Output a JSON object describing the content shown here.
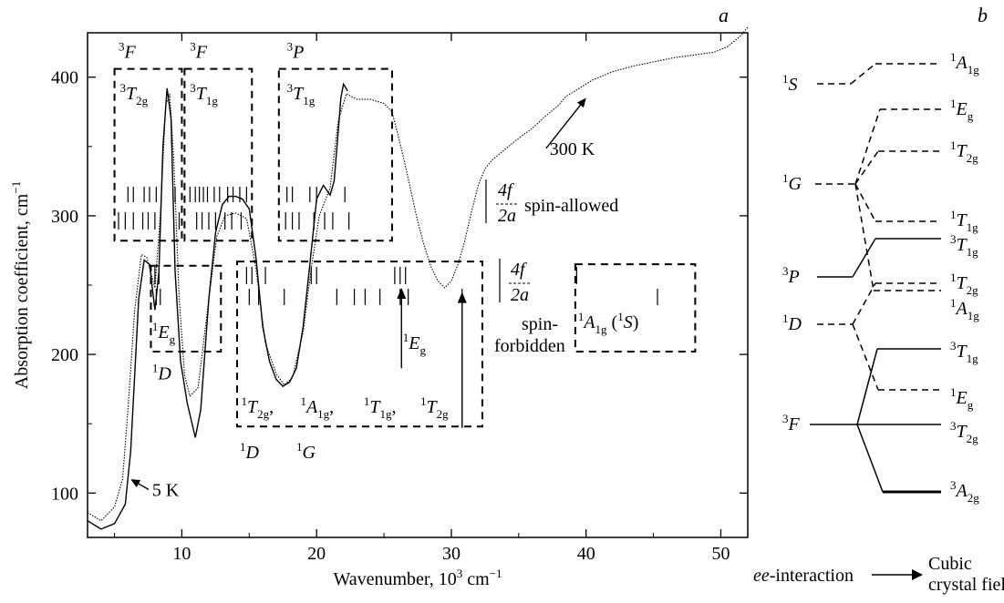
{
  "chart_data": {
    "type": "line",
    "panel_label": "a",
    "xlabel_text": "Wavenumber, 10",
    "xlabel_exp": "3",
    "xlabel_unit": " cm",
    "xlabel_unit_exp": "−1",
    "ylabel_text": "Absorption coefficient, cm",
    "ylabel_exp": "−1",
    "xlim": [
      3,
      52
    ],
    "ylim": [
      68,
      432
    ],
    "xticks": [
      10,
      20,
      30,
      40,
      50
    ],
    "yticks": [
      100,
      200,
      300,
      400
    ],
    "series": [
      {
        "name": "5 K",
        "style": "solid",
        "points": [
          [
            3.0,
            80
          ],
          [
            4.0,
            74
          ],
          [
            5.0,
            78
          ],
          [
            5.8,
            92
          ],
          [
            6.2,
            130
          ],
          [
            6.8,
            240
          ],
          [
            7.2,
            268
          ],
          [
            7.6,
            265
          ],
          [
            8.0,
            232
          ],
          [
            8.3,
            260
          ],
          [
            8.6,
            350
          ],
          [
            8.9,
            392
          ],
          [
            9.2,
            370
          ],
          [
            9.5,
            260
          ],
          [
            9.9,
            195
          ],
          [
            10.4,
            165
          ],
          [
            11.0,
            140
          ],
          [
            11.4,
            160
          ],
          [
            12.0,
            240
          ],
          [
            12.5,
            288
          ],
          [
            13.0,
            308
          ],
          [
            13.5,
            314
          ],
          [
            14.0,
            314
          ],
          [
            14.5,
            312
          ],
          [
            15.0,
            305
          ],
          [
            15.5,
            270
          ],
          [
            16.0,
            220
          ],
          [
            16.5,
            195
          ],
          [
            17.0,
            182
          ],
          [
            17.5,
            177
          ],
          [
            18.0,
            180
          ],
          [
            18.5,
            190
          ],
          [
            19.0,
            220
          ],
          [
            19.5,
            265
          ],
          [
            20.0,
            312
          ],
          [
            20.5,
            322
          ],
          [
            21.0,
            315
          ],
          [
            21.3,
            325
          ],
          [
            21.6,
            360
          ],
          [
            21.8,
            385
          ],
          [
            22.0,
            395
          ],
          [
            22.3,
            390
          ]
        ]
      },
      {
        "name": "300 K",
        "style": "dotted",
        "points": [
          [
            3.0,
            86
          ],
          [
            4.0,
            80
          ],
          [
            5.0,
            90
          ],
          [
            5.6,
            110
          ],
          [
            6.0,
            160
          ],
          [
            6.5,
            232
          ],
          [
            7.0,
            272
          ],
          [
            7.4,
            270
          ],
          [
            8.0,
            248
          ],
          [
            8.4,
            300
          ],
          [
            8.8,
            380
          ],
          [
            9.1,
            388
          ],
          [
            9.4,
            340
          ],
          [
            9.8,
            240
          ],
          [
            10.2,
            185
          ],
          [
            10.6,
            170
          ],
          [
            11.2,
            176
          ],
          [
            12.0,
            240
          ],
          [
            12.6,
            285
          ],
          [
            13.2,
            300
          ],
          [
            14.0,
            302
          ],
          [
            14.8,
            298
          ],
          [
            15.5,
            262
          ],
          [
            16.2,
            208
          ],
          [
            17.0,
            186
          ],
          [
            17.6,
            178
          ],
          [
            18.2,
            183
          ],
          [
            19.0,
            216
          ],
          [
            19.6,
            262
          ],
          [
            20.2,
            300
          ],
          [
            21.0,
            320
          ],
          [
            21.6,
            368
          ],
          [
            22.2,
            388
          ],
          [
            23.0,
            384
          ],
          [
            24.0,
            384
          ],
          [
            25.0,
            381
          ],
          [
            25.6,
            375
          ],
          [
            26.0,
            360
          ],
          [
            26.5,
            340
          ],
          [
            27.0,
            318
          ],
          [
            27.5,
            296
          ],
          [
            28.0,
            278
          ],
          [
            28.5,
            263
          ],
          [
            29.0,
            253
          ],
          [
            29.5,
            248
          ],
          [
            30.0,
            253
          ],
          [
            30.5,
            265
          ],
          [
            31.0,
            282
          ],
          [
            31.5,
            303
          ],
          [
            32.0,
            322
          ],
          [
            32.5,
            334
          ],
          [
            33.0,
            340
          ],
          [
            34.0,
            348
          ],
          [
            35.0,
            356
          ],
          [
            36.0,
            363
          ],
          [
            37.0,
            372
          ],
          [
            38.0,
            380
          ],
          [
            38.5,
            386
          ],
          [
            39.5,
            392
          ],
          [
            40.5,
            398
          ],
          [
            42.0,
            404
          ],
          [
            43.5,
            408
          ],
          [
            45.0,
            411
          ],
          [
            46.5,
            414
          ],
          [
            48.0,
            416
          ],
          [
            49.5,
            418
          ],
          [
            50.5,
            422
          ],
          [
            51.5,
            430
          ],
          [
            52.0,
            436
          ]
        ]
      }
    ],
    "temp_labels": [
      {
        "text": "5 K",
        "pos": [
          7.8,
          98
        ],
        "arrow_to": [
          6.2,
          110
        ]
      },
      {
        "text": "300 K",
        "pos": [
          37.3,
          344
        ],
        "arrow_to": [
          40.0,
          385
        ]
      }
    ],
    "boxes": [
      {
        "x": [
          5.0,
          10.0
        ],
        "y": [
          282,
          406
        ],
        "sup": "3",
        "main": "F",
        "sub": "",
        "label_pos": [
          5.3,
          414
        ]
      },
      {
        "x": [
          10.2,
          15.2
        ],
        "y": [
          282,
          406
        ],
        "sup": "3",
        "main": "F",
        "sub": "",
        "label_pos": [
          10.6,
          414
        ]
      },
      {
        "x": [
          17.2,
          25.6
        ],
        "y": [
          282,
          406
        ],
        "sup": "3",
        "main": "P",
        "sub": "",
        "label_pos": [
          17.8,
          414
        ]
      },
      {
        "x": [
          7.7,
          12.9
        ],
        "y": [
          202,
          264
        ],
        "sup": "",
        "main": "",
        "sub": "",
        "label_pos": [
          0,
          0
        ]
      },
      {
        "x": [
          14.1,
          32.3
        ],
        "y": [
          148,
          267
        ],
        "sup": "",
        "main": "",
        "sub": "",
        "label_pos": [
          0,
          0
        ]
      },
      {
        "x": [
          39.2,
          48.1
        ],
        "y": [
          202,
          265
        ],
        "sup": "",
        "main": "",
        "sub": "",
        "label_pos": [
          0,
          0
        ]
      }
    ],
    "term_labels": [
      {
        "sup": "3",
        "main": "T",
        "sub": "2g",
        "pos": [
          5.4,
          384
        ]
      },
      {
        "sup": "3",
        "main": "T",
        "sub": "1g",
        "pos": [
          10.6,
          384
        ]
      },
      {
        "sup": "3",
        "main": "T",
        "sub": "1g",
        "pos": [
          17.8,
          384
        ]
      },
      {
        "sup": "1",
        "main": "E",
        "sub": "g",
        "pos": [
          7.8,
          212
        ]
      },
      {
        "sup": "1",
        "main": "D",
        "sub": "",
        "pos": [
          7.8,
          182
        ]
      },
      {
        "sup": "1",
        "main": "E",
        "sub": "g",
        "pos": [
          26.4,
          204
        ]
      },
      {
        "sup": "1",
        "main": "D",
        "sub": "",
        "pos": [
          14.3,
          125
        ]
      },
      {
        "sup": "1",
        "main": "G",
        "sub": "",
        "pos": [
          18.5,
          125
        ]
      }
    ],
    "combo_label": [
      {
        "sup": "1",
        "main": "T",
        "sub": "2g",
        "tail": ",",
        "pos": [
          14.4,
          158
        ]
      },
      {
        "sup": "1",
        "main": "A",
        "sub": "1g",
        "tail": ",",
        "pos": [
          18.8,
          158
        ]
      },
      {
        "sup": "1",
        "main": "T",
        "sub": "1g",
        "tail": ",",
        "pos": [
          23.5,
          158
        ]
      },
      {
        "sup": "1",
        "main": "T",
        "sub": "2g",
        "tail": "",
        "pos": [
          27.7,
          158
        ]
      }
    ],
    "a1s_label": {
      "sup": "1",
      "main": "A",
      "sub": "1g",
      "paren": "(",
      "sup2": "1",
      "main2": "S",
      "paren2": ")",
      "pos": [
        39.4,
        219
      ]
    },
    "up_arrows": [
      {
        "x": 26.3,
        "from": 190,
        "to": 248
      },
      {
        "x": 30.8,
        "from": 147,
        "to": 245
      }
    ],
    "sticks_upper_4f": [
      6.0,
      6.4,
      7.2,
      7.6,
      8.1,
      9.5,
      10.6,
      11.0,
      11.3,
      11.6,
      11.9,
      12.4,
      12.8,
      13.4,
      13.8,
      14.3,
      14.8,
      17.8,
      18.2,
      19.5,
      20.0,
      22.1
    ],
    "sticks_upper_2a": [
      5.3,
      5.8,
      6.4,
      7.1,
      7.5,
      8.0,
      9.8,
      11.1,
      11.5,
      12.0,
      12.5,
      13.2,
      13.7,
      14.4,
      17.7,
      18.2,
      18.7,
      19.8,
      20.6,
      21.2,
      22.4
    ],
    "sticks_lower_4f": [
      8.0,
      8.3,
      14.8,
      15.2,
      16.2,
      19.6,
      20.0,
      25.8,
      26.2,
      26.6,
      39.3
    ],
    "sticks_lower_2a": [
      8.1,
      8.4,
      15.0,
      15.7,
      17.6,
      21.5,
      22.8,
      23.6,
      24.7,
      26.2,
      26.8,
      30.8,
      45.3
    ],
    "stick_legend_upper": {
      "top": "4f",
      "bottom": "2a",
      "caption": "spin-allowed"
    },
    "stick_legend_lower": {
      "top": "4f",
      "bottom": "2a",
      "caption_line1": "spin-",
      "caption_line2": "forbidden"
    }
  },
  "diagram": {
    "panel_label": "b",
    "left_terms": [
      {
        "sup": "1",
        "main": "S"
      },
      {
        "sup": "1",
        "main": "G"
      },
      {
        "sup": "3",
        "main": "P"
      },
      {
        "sup": "1",
        "main": "D"
      },
      {
        "sup": "3",
        "main": "F"
      }
    ],
    "right_terms": [
      {
        "sup": "1",
        "main": "A",
        "sub": "1g"
      },
      {
        "sup": "1",
        "main": "E",
        "sub": "g"
      },
      {
        "sup": "1",
        "main": "T",
        "sub": "2g"
      },
      {
        "sup": "1",
        "main": "T",
        "sub": "1g"
      },
      {
        "sup": "3",
        "main": "T",
        "sub": "1g"
      },
      {
        "sup": "1",
        "main": "T",
        "sub": "2g"
      },
      {
        "sup": "1",
        "main": "A",
        "sub": "1g"
      },
      {
        "sup": "3",
        "main": "T",
        "sub": "1g"
      },
      {
        "sup": "1",
        "main": "E",
        "sub": "g"
      },
      {
        "sup": "3",
        "main": "T",
        "sub": "2g"
      },
      {
        "sup": "3",
        "main": "A",
        "sub": "2g"
      }
    ],
    "footer_left": "ee-interaction",
    "footer_right_line1": "Cubic",
    "footer_right_line2": "crystal field"
  }
}
